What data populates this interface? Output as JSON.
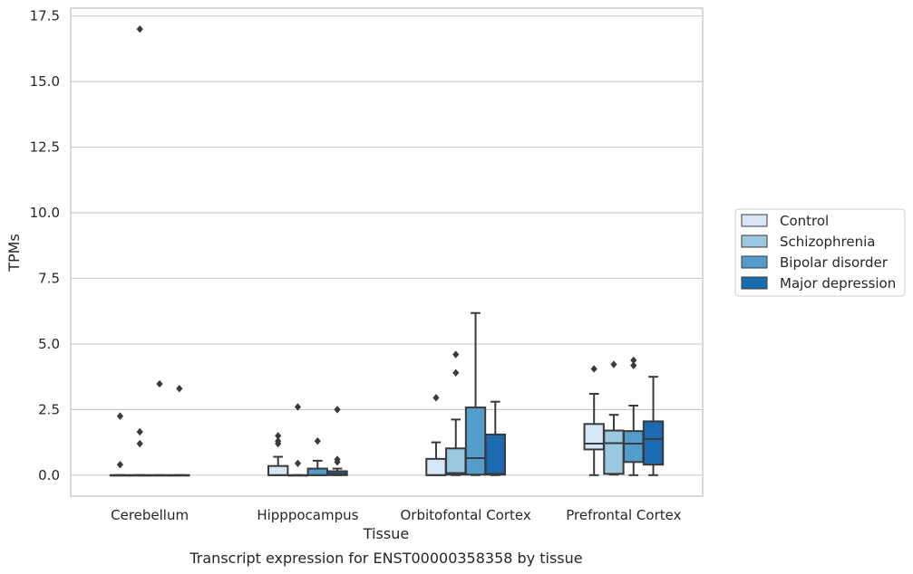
{
  "chart_data": {
    "type": "box",
    "title": "",
    "caption": "Transcript expression for ENST00000358358 by tissue",
    "xlabel": "Tissue",
    "ylabel": "TPMs",
    "ylim": [
      -0.8,
      17.8
    ],
    "yticks": [
      "0.0",
      "2.5",
      "5.0",
      "7.5",
      "10.0",
      "12.5",
      "15.0",
      "17.5"
    ],
    "ytick_values": [
      0,
      2.5,
      5,
      7.5,
      10,
      12.5,
      15,
      17.5
    ],
    "grid": "horizontal",
    "legend_position": "right",
    "categories": [
      "Cerebellum",
      "Hipppocampus",
      "Orbitofontal Cortex",
      "Prefrontal Cortex"
    ],
    "series": [
      {
        "name": "Control",
        "color": "#d6e6f4",
        "boxes": [
          {
            "whislo": 0,
            "q1": 0,
            "med": 0,
            "q3": 0,
            "whishi": 0,
            "fliers": [
              0.4,
              2.25
            ]
          },
          {
            "whislo": 0,
            "q1": 0,
            "med": 0,
            "q3": 0.35,
            "whishi": 0.7,
            "fliers": [
              1.2,
              1.3,
              1.5
            ]
          },
          {
            "whislo": 0,
            "q1": 0,
            "med": 0,
            "q3": 0.62,
            "whishi": 1.25,
            "fliers": [
              2.95
            ]
          },
          {
            "whislo": 0,
            "q1": 0.98,
            "med": 1.2,
            "q3": 1.95,
            "whishi": 3.1,
            "fliers": [
              4.05
            ]
          }
        ]
      },
      {
        "name": "Schizophrenia",
        "color": "#9ac8e0",
        "boxes": [
          {
            "whislo": 0,
            "q1": 0,
            "med": 0,
            "q3": 0,
            "whishi": 0,
            "fliers": [
              1.2,
              1.65,
              17.0
            ]
          },
          {
            "whislo": 0,
            "q1": 0,
            "med": 0,
            "q3": 0,
            "whishi": 0,
            "fliers": [
              0.45,
              2.6
            ]
          },
          {
            "whislo": 0,
            "q1": 0.02,
            "med": 0.08,
            "q3": 1.02,
            "whishi": 2.12,
            "fliers": [
              3.9,
              4.6
            ]
          },
          {
            "whislo": 0.02,
            "q1": 0.05,
            "med": 1.22,
            "q3": 1.7,
            "whishi": 2.3,
            "fliers": [
              4.22
            ]
          }
        ]
      },
      {
        "name": "Bipolar disorder",
        "color": "#529dcc",
        "boxes": [
          {
            "whislo": 0,
            "q1": 0,
            "med": 0,
            "q3": 0,
            "whishi": 0,
            "fliers": [
              3.48
            ]
          },
          {
            "whislo": 0,
            "q1": 0,
            "med": 0,
            "q3": 0.25,
            "whishi": 0.55,
            "fliers": [
              1.3
            ]
          },
          {
            "whislo": 0,
            "q1": 0.02,
            "med": 0.65,
            "q3": 2.58,
            "whishi": 6.18,
            "fliers": []
          },
          {
            "whislo": 0,
            "q1": 0.5,
            "med": 1.2,
            "q3": 1.68,
            "whishi": 2.65,
            "fliers": [
              4.18,
              4.38
            ]
          }
        ]
      },
      {
        "name": "Major depression",
        "color": "#1c6aaf",
        "boxes": [
          {
            "whislo": 0,
            "q1": 0,
            "med": 0,
            "q3": 0,
            "whishi": 0,
            "fliers": [
              3.3
            ]
          },
          {
            "whislo": 0,
            "q1": 0,
            "med": 0.05,
            "q3": 0.15,
            "whishi": 0.25,
            "fliers": [
              0.5,
              0.6,
              2.5
            ]
          },
          {
            "whislo": 0,
            "q1": 0.02,
            "med": 0.05,
            "q3": 1.55,
            "whishi": 2.8,
            "fliers": []
          },
          {
            "whislo": 0,
            "q1": 0.4,
            "med": 1.38,
            "q3": 2.05,
            "whishi": 3.75,
            "fliers": []
          }
        ]
      }
    ]
  }
}
